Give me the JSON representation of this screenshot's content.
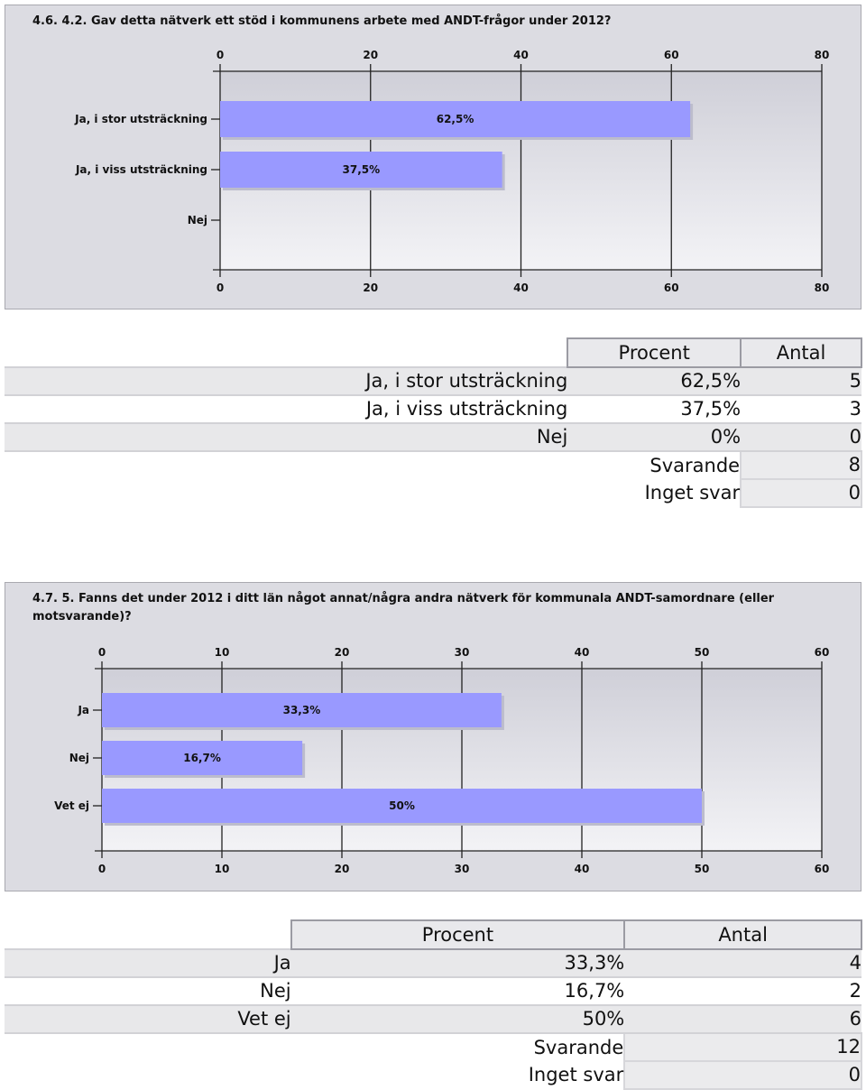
{
  "chart_data": [
    {
      "type": "bar",
      "orientation": "horizontal",
      "title": "4.6. 4.2. Gav detta nätverk ett stöd i kommunens arbete med ANDT-frågor under 2012?",
      "categories": [
        "Ja, i stor utsträckning",
        "Ja, i viss utsträckning",
        "Nej"
      ],
      "values": [
        62.5,
        37.5,
        0
      ],
      "data_labels": [
        "62,5%",
        "37,5%",
        ""
      ],
      "xlim": [
        0,
        80
      ],
      "xticks": [
        0,
        20,
        40,
        60,
        80
      ],
      "grid": true,
      "bar_color": "#9999ff"
    },
    {
      "type": "bar",
      "orientation": "horizontal",
      "title": "4.7. 5. Fanns det under 2012 i ditt län något annat/några andra nätverk för kommunala ANDT-samordnare (eller motsvarande)?",
      "categories": [
        "Ja",
        "Nej",
        "Vet ej"
      ],
      "values": [
        33.3,
        16.7,
        50
      ],
      "data_labels": [
        "33,3%",
        "16,7%",
        "50%"
      ],
      "xlim": [
        0,
        60
      ],
      "xticks": [
        0,
        10,
        20,
        30,
        40,
        50,
        60
      ],
      "grid": true,
      "bar_color": "#9999ff"
    }
  ],
  "tables": [
    {
      "headers": {
        "percent": "Procent",
        "count": "Antal"
      },
      "rows": [
        {
          "label": "Ja, i stor utsträckning",
          "percent": "62,5%",
          "count": "5"
        },
        {
          "label": "Ja, i viss utsträckning",
          "percent": "37,5%",
          "count": "3"
        },
        {
          "label": "Nej",
          "percent": "0%",
          "count": "0"
        }
      ],
      "summary": [
        {
          "label": "Svarande",
          "value": "8"
        },
        {
          "label": "Inget svar",
          "value": "0"
        }
      ]
    },
    {
      "headers": {
        "percent": "Procent",
        "count": "Antal"
      },
      "rows": [
        {
          "label": "Ja",
          "percent": "33,3%",
          "count": "4"
        },
        {
          "label": "Nej",
          "percent": "16,7%",
          "count": "2"
        },
        {
          "label": "Vet ej",
          "percent": "50%",
          "count": "6"
        }
      ],
      "summary": [
        {
          "label": "Svarande",
          "value": "12"
        },
        {
          "label": "Inget svar",
          "value": "0"
        }
      ]
    }
  ]
}
